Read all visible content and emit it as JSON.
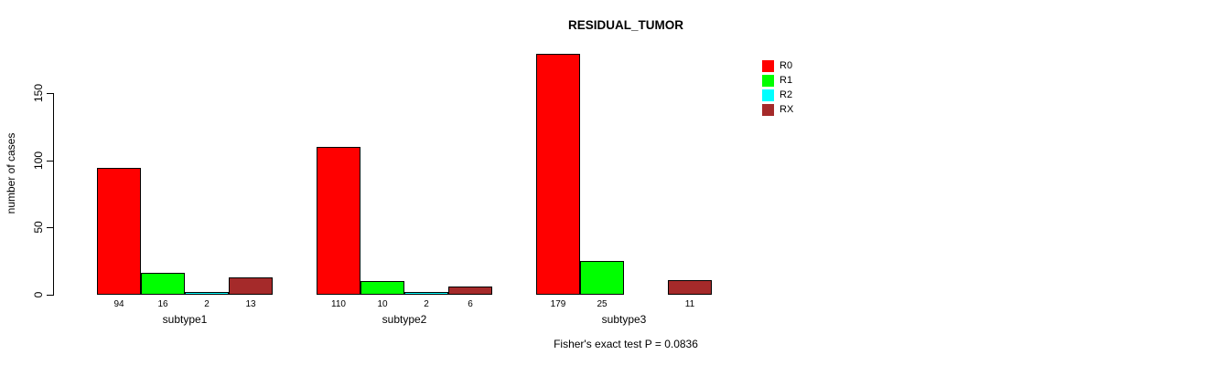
{
  "chart_data": {
    "type": "bar",
    "title": "RESIDUAL_TUMOR",
    "xlabel": "",
    "ylabel": "number of cases",
    "annotation": "Fisher's exact test P = 0.0836",
    "categories": [
      "subtype1",
      "subtype2",
      "subtype3"
    ],
    "series": [
      {
        "name": "R0",
        "color": "#ff0000",
        "values": [
          94,
          110,
          179
        ]
      },
      {
        "name": "R1",
        "color": "#00ff00",
        "values": [
          16,
          10,
          25
        ]
      },
      {
        "name": "R2",
        "color": "#00ffff",
        "values": [
          2,
          2,
          0
        ]
      },
      {
        "name": "RX",
        "color": "#a52a2a",
        "values": [
          13,
          6,
          11
        ]
      }
    ],
    "yticks": [
      0,
      50,
      100,
      150
    ],
    "ylim": [
      0,
      185
    ],
    "grid": false,
    "legend_position": "right",
    "bar_value_labels": true,
    "zero_value_labels_hidden": true,
    "bar_border_color": "#000000"
  }
}
